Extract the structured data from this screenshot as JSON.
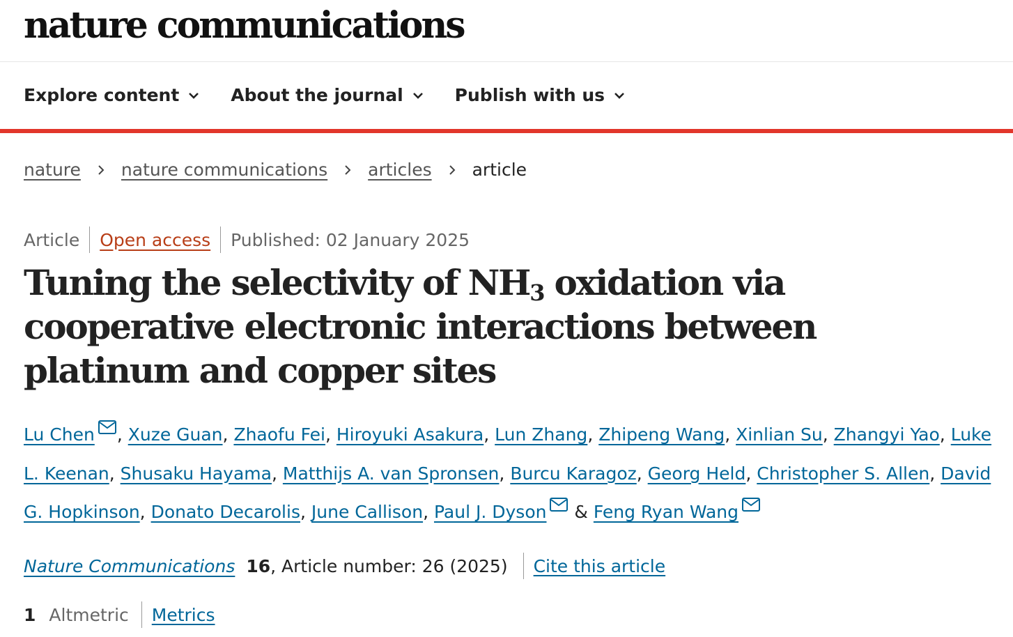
{
  "masthead": {
    "logo_text": "nature communications"
  },
  "nav": {
    "items": [
      {
        "label": "Explore content"
      },
      {
        "label": "About the journal"
      },
      {
        "label": "Publish with us"
      }
    ]
  },
  "breadcrumb": {
    "items": [
      "nature",
      "nature communications",
      "articles"
    ],
    "current": "article"
  },
  "article": {
    "type": "Article",
    "access": "Open access",
    "published": "Published: 02 January 2025",
    "title_part1": "Tuning the selectivity of NH",
    "title_sub": "3",
    "title_part2": " oxidation via cooperative electronic interactions between platinum and copper sites",
    "authors": [
      "Lu Chen",
      "Xuze Guan",
      "Zhaofu Fei",
      "Hiroyuki Asakura",
      "Lun Zhang",
      "Zhipeng Wang",
      "Xinlian Su",
      "Zhangyi Yao",
      "Luke L. Keenan",
      "Shusaku Hayama",
      "Matthijs A. van Spronsen",
      "Burcu Karagoz",
      "Georg Held",
      "Christopher S. Allen",
      "David G. Hopkinson",
      "Donato Decarolis",
      "June Callison",
      "Paul J. Dyson",
      "Feng Ryan Wang"
    ],
    "ampersand": "&",
    "comma": ","
  },
  "citation": {
    "journal": "Nature Communications",
    "volume": "16",
    "article_number": ", Article number: 26 (2025)",
    "cite_label": "Cite this article"
  },
  "metrics": {
    "altmetric_count": "1",
    "altmetric_label": "Altmetric",
    "metrics_link": "Metrics"
  },
  "colors": {
    "link": "#006699",
    "open_access": "#b83e17",
    "nav_rule": "#e2362b",
    "text": "#222222"
  },
  "icons": [
    "chevron-down-icon",
    "chevron-right-icon",
    "mail-icon"
  ]
}
